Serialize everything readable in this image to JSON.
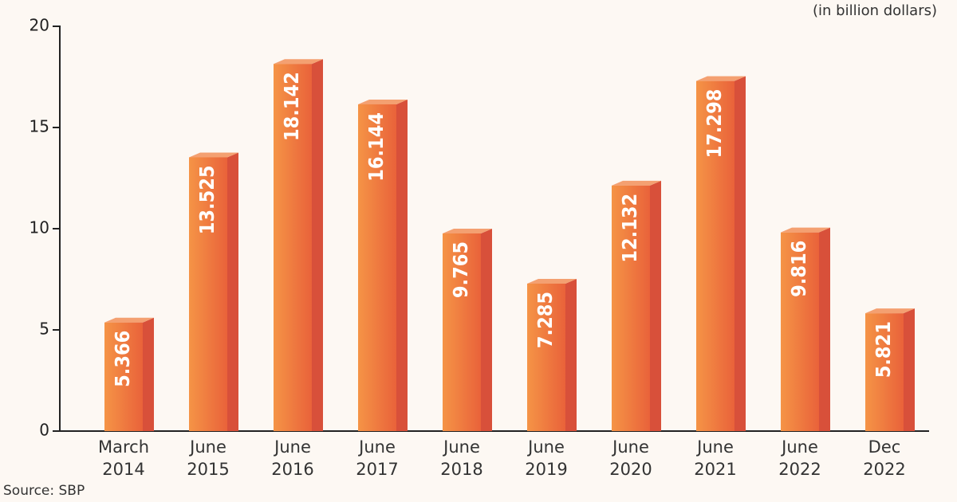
{
  "chart_data": {
    "type": "bar",
    "unit_note": "(in billion dollars)",
    "source": "Source: SBP",
    "categories": [
      "March 2014",
      "June 2015",
      "June 2016",
      "June 2017",
      "June 2018",
      "June 2019",
      "June 2020",
      "June 2021",
      "June 2022",
      "Dec 2022"
    ],
    "values": [
      5.366,
      13.525,
      18.142,
      16.144,
      9.765,
      7.285,
      12.132,
      17.298,
      9.816,
      5.821
    ],
    "color": "#f07a3a",
    "ylim": [
      0,
      20
    ],
    "yticks": [
      0,
      5,
      10,
      15,
      20
    ]
  }
}
